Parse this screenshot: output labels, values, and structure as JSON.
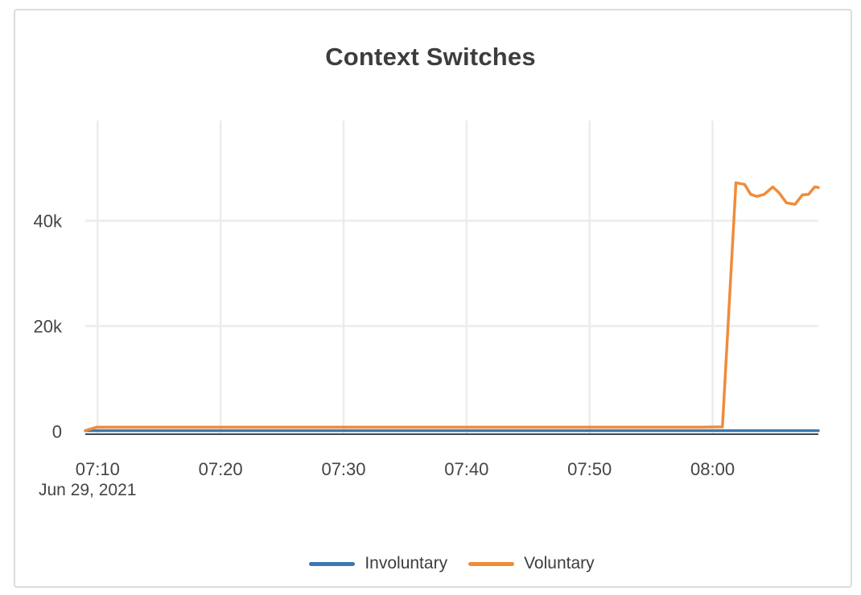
{
  "card": {
    "title": "Context Switches"
  },
  "chart_data": {
    "type": "line",
    "title": "Context Switches",
    "grid": true,
    "legend_position": "bottom-center",
    "x_axis": {
      "start_time": "07:09",
      "date_label": "Jun 29, 2021",
      "range_minutes": [
        0,
        59.6
      ],
      "ticks": [
        {
          "label": "07:10",
          "t": 1
        },
        {
          "label": "07:20",
          "t": 11
        },
        {
          "label": "07:30",
          "t": 21
        },
        {
          "label": "07:40",
          "t": 31
        },
        {
          "label": "07:50",
          "t": 41
        },
        {
          "label": "08:00",
          "t": 51
        }
      ]
    },
    "y_axis": {
      "range": [
        0,
        59000
      ],
      "ticks": [
        {
          "label": "0",
          "value": 0
        },
        {
          "label": "20k",
          "value": 20000
        },
        {
          "label": "40k",
          "value": 40000
        }
      ]
    },
    "series": [
      {
        "name": "Involuntary",
        "color": "#3a79b1",
        "points": [
          [
            0,
            130
          ],
          [
            10,
            130
          ],
          [
            20,
            130
          ],
          [
            30,
            130
          ],
          [
            40,
            130
          ],
          [
            50,
            130
          ],
          [
            59.6,
            130
          ]
        ]
      },
      {
        "name": "Voluntary",
        "color": "#ef8c3b",
        "points": [
          [
            0,
            150
          ],
          [
            0.9,
            800
          ],
          [
            5,
            810
          ],
          [
            10,
            800
          ],
          [
            15,
            805
          ],
          [
            20,
            800
          ],
          [
            25,
            810
          ],
          [
            30,
            800
          ],
          [
            35,
            805
          ],
          [
            40,
            800
          ],
          [
            45,
            810
          ],
          [
            50,
            800
          ],
          [
            51.8,
            850
          ],
          [
            52.9,
            47200
          ],
          [
            53.6,
            46900
          ],
          [
            54.1,
            45000
          ],
          [
            54.6,
            44600
          ],
          [
            55.2,
            45000
          ],
          [
            55.9,
            46400
          ],
          [
            56.4,
            45300
          ],
          [
            57.0,
            43400
          ],
          [
            57.7,
            43100
          ],
          [
            58.3,
            44900
          ],
          [
            58.8,
            45000
          ],
          [
            59.3,
            46400
          ],
          [
            59.6,
            46300
          ]
        ]
      }
    ],
    "colors": {
      "gridline": "#ececec",
      "axis_line": "#474747",
      "tick_text": "#454545",
      "title_text": "#3d3d3d",
      "card_border": "#dcdcdc"
    }
  }
}
